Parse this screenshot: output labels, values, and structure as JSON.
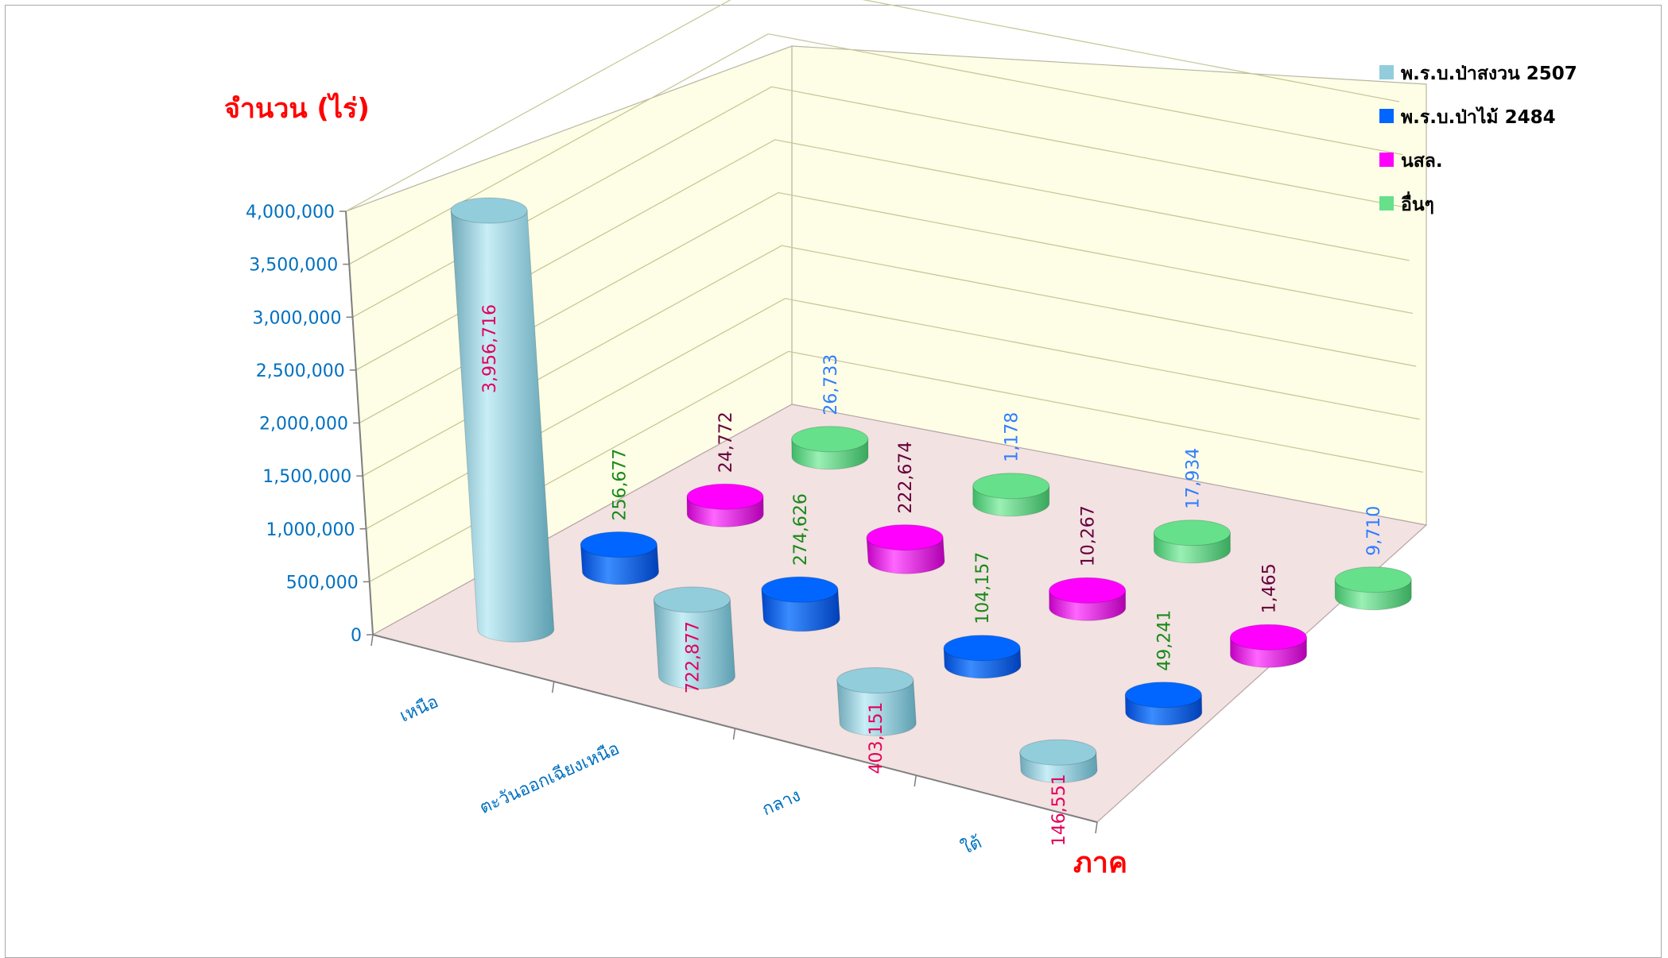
{
  "chart_data": {
    "type": "bar",
    "style": "3d-cylinder",
    "ylabel": "จำนวน (ไร่)",
    "xlabel": "ภาค",
    "categories": [
      "เหนือ",
      "ตะวันออกเฉียงเหนือ",
      "กลาง",
      "ใต้"
    ],
    "y_ticks": [
      "0",
      "500,000",
      "1,000,000",
      "1,500,000",
      "2,000,000",
      "2,500,000",
      "3,000,000",
      "3,500,000",
      "4,000,000"
    ],
    "ylim": [
      0,
      4000000
    ],
    "legend_position": "top-right",
    "series": [
      {
        "name": "พ.ร.บ.ป่าสงวน 2507",
        "color": "#92cddc",
        "label_color": "#e3005a",
        "values": [
          3956716,
          722877,
          403151,
          146551
        ],
        "labels": [
          "3,956,716",
          "722,877",
          "403,151",
          "146,551"
        ]
      },
      {
        "name": "พ.ร.บ.ป่าไม้ 2484",
        "color": "#0066ff",
        "label_color": "#1a8a1a",
        "values": [
          256677,
          274626,
          104157,
          49241
        ],
        "labels": [
          "256,677",
          "274,626",
          "104,157",
          "49,241"
        ]
      },
      {
        "name": "นสล.",
        "color": "#ff00ff",
        "label_color": "#66003b",
        "values": [
          24772,
          222674,
          10267,
          1465
        ],
        "labels": [
          "24,772",
          "222,674",
          "10,267",
          "1,465"
        ]
      },
      {
        "name": "อื่นๆ",
        "color": "#66e08a",
        "label_color": "#2f7dff",
        "values": [
          26733,
          1178,
          17934,
          9710
        ],
        "labels": [
          "26,733",
          "1,178",
          "17,934",
          "9,710"
        ]
      }
    ]
  }
}
